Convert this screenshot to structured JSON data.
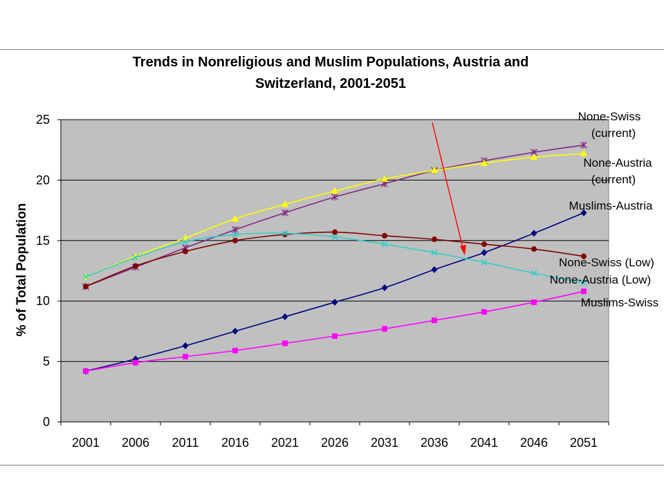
{
  "chart_data": {
    "type": "line",
    "title_lines": [
      "Trends in Nonreligious and Muslim Populations, Austria and",
      "Switzerland, 2001-2051"
    ],
    "ylabel": "% of Total Population",
    "xlabel": "",
    "ylim": [
      0,
      25
    ],
    "yticks": [
      0,
      5,
      10,
      15,
      20,
      25
    ],
    "categories": [
      "2001",
      "2006",
      "2011",
      "2016",
      "2021",
      "2026",
      "2031",
      "2036",
      "2041",
      "2046",
      "2051"
    ],
    "grid": "horizontal",
    "plot_background": "#C0C0C0",
    "series": [
      {
        "name": "None-Swiss (current)",
        "color": "#7F2A7F",
        "marker": "star",
        "values": [
          11.2,
          12.8,
          14.4,
          15.9,
          17.3,
          18.6,
          19.7,
          20.8,
          21.6,
          22.3,
          22.9
        ]
      },
      {
        "name": "None-Austria (current)",
        "color": "#FFFF00",
        "marker": "triangle",
        "values": [
          12.0,
          13.7,
          15.2,
          16.8,
          18.0,
          19.1,
          20.1,
          20.8,
          21.4,
          21.9,
          22.2
        ]
      },
      {
        "name": "Muslims-Austria",
        "color": "#000080",
        "marker": "diamond",
        "values": [
          4.2,
          5.2,
          6.3,
          7.5,
          8.7,
          9.9,
          11.1,
          12.6,
          14.0,
          15.6,
          17.3
        ]
      },
      {
        "name": "None-Swiss (Low)",
        "color": "#800000",
        "marker": "circle",
        "values": [
          11.2,
          12.9,
          14.1,
          15.0,
          15.5,
          15.7,
          15.4,
          15.1,
          14.7,
          14.3,
          13.7
        ]
      },
      {
        "name": "None-Austria (Low)",
        "color": "#33CCCC",
        "marker": "x",
        "values": [
          12.0,
          13.6,
          14.9,
          15.5,
          15.6,
          15.3,
          14.7,
          14.0,
          13.2,
          12.3,
          11.5
        ]
      },
      {
        "name": "Muslims-Swiss",
        "color": "#FF00FF",
        "marker": "square",
        "values": [
          4.2,
          4.9,
          5.4,
          5.9,
          6.5,
          7.1,
          7.7,
          8.4,
          9.1,
          9.9,
          10.8
        ]
      }
    ],
    "annotations": [
      {
        "lines": [
          "None-Swiss",
          "(current)"
        ]
      },
      {
        "lines": [
          "None-Austria",
          "(current)"
        ]
      },
      {
        "lines": [
          "Muslims-Austria"
        ]
      },
      {
        "lines": [
          "None-Swiss (Low)"
        ]
      },
      {
        "lines": [
          "None-Austria (Low)"
        ]
      },
      {
        "lines": [
          "Muslims-Swiss"
        ]
      }
    ],
    "arrow": {
      "color": "#FF0000"
    }
  }
}
